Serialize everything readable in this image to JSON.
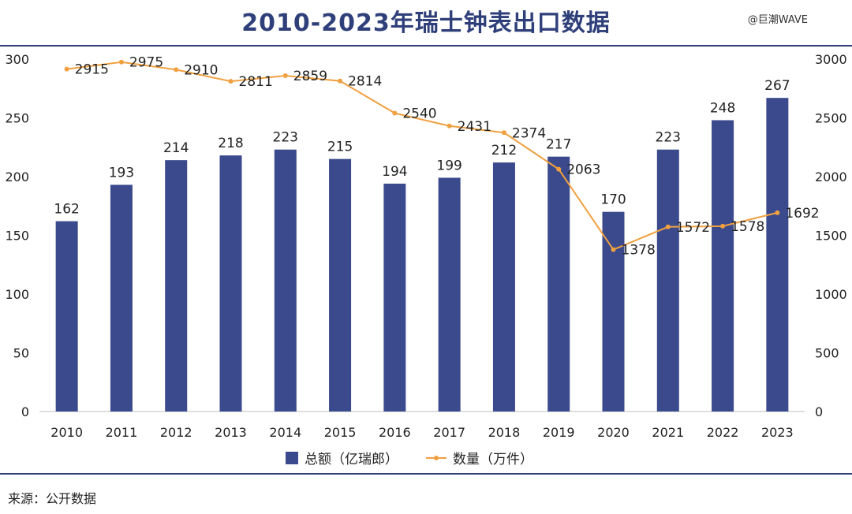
{
  "title": "2010-2023年瑞士钟表出口数据",
  "watermark": "@巨潮WAVE",
  "source": "来源：公开数据",
  "colors": {
    "bar": "#3b4a8c",
    "line": "#f0a040",
    "rule": "#2f3f7a"
  },
  "chart_data": {
    "type": "bar+line",
    "categories": [
      "2010",
      "2011",
      "2012",
      "2013",
      "2014",
      "2015",
      "2016",
      "2017",
      "2018",
      "2019",
      "2020",
      "2021",
      "2022",
      "2023"
    ],
    "series": [
      {
        "name": "总额（亿瑞郎）",
        "type": "bar",
        "axis": "left",
        "values": [
          162,
          193,
          214,
          218,
          223,
          215,
          194,
          199,
          212,
          217,
          170,
          223,
          248,
          267
        ]
      },
      {
        "name": "数量（万件）",
        "type": "line",
        "axis": "right",
        "values": [
          2915,
          2975,
          2910,
          2811,
          2859,
          2814,
          2540,
          2431,
          2374,
          2063,
          1378,
          1572,
          1578,
          1692
        ]
      }
    ],
    "y_left": {
      "min": 0,
      "max": 300,
      "ticks": [
        0,
        50,
        100,
        150,
        200,
        250,
        300
      ]
    },
    "y_right": {
      "min": 0,
      "max": 3000,
      "ticks": [
        0,
        500,
        1000,
        1500,
        2000,
        2500,
        3000
      ]
    },
    "legend_position": "bottom",
    "grid": false
  }
}
